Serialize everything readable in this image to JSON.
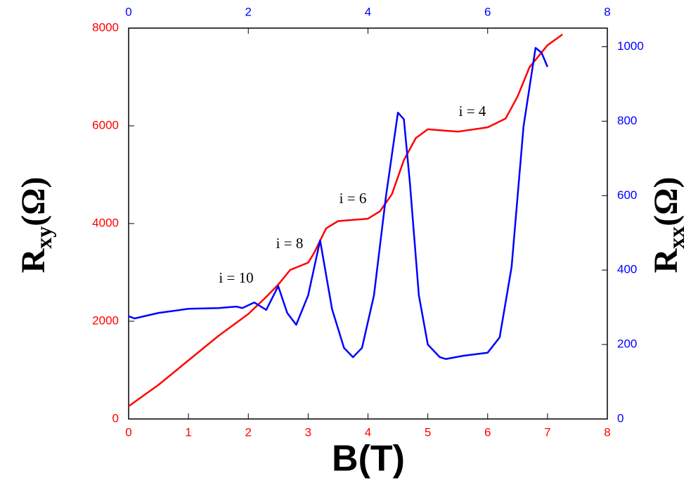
{
  "chart_data": {
    "type": "line",
    "x_label": "B(T)",
    "y_label": [
      "R",
      "xy",
      "(Ω)"
    ],
    "y2_label": [
      "R",
      "xx",
      "(Ω)"
    ],
    "annotations": [
      "i = 10",
      "i = 8",
      "i = 6",
      "i = 4"
    ],
    "xlim": [
      0,
      8
    ],
    "xticks": [
      0,
      1,
      2,
      3,
      4,
      5,
      6,
      7,
      8
    ],
    "x2lim": [
      0,
      8
    ],
    "x2ticks": [
      0,
      2,
      4,
      6,
      8
    ],
    "ylim": [
      0,
      8000
    ],
    "yticks": [
      0,
      2000,
      4000,
      6000,
      8000
    ],
    "y2lim": [
      0,
      1050
    ],
    "y2ticks": [
      0,
      200,
      400,
      600,
      800,
      1000
    ],
    "series": [
      {
        "color": "#ff0000",
        "axis": "y",
        "x": [
          0,
          0.5,
          1,
          1.5,
          2,
          2.3,
          2.5,
          2.7,
          3.0,
          3.1,
          3.3,
          3.5,
          4.0,
          4.2,
          4.4,
          4.6,
          4.8,
          5.0,
          5.5,
          6.0,
          6.3,
          6.5,
          6.7,
          7.0,
          7.25
        ],
        "values": [
          260,
          700,
          1200,
          1700,
          2150,
          2500,
          2750,
          3050,
          3200,
          3400,
          3900,
          4050,
          4100,
          4250,
          4600,
          5300,
          5750,
          5930,
          5880,
          5970,
          6150,
          6600,
          7200,
          7650,
          7870
        ]
      },
      {
        "color": "#0000ff",
        "axis": "y2",
        "x": [
          0,
          0.1,
          0.5,
          1.0,
          1.5,
          1.8,
          1.9,
          2.1,
          2.3,
          2.5,
          2.65,
          2.8,
          3.0,
          3.2,
          3.4,
          3.6,
          3.75,
          3.9,
          4.1,
          4.3,
          4.5,
          4.6,
          4.7,
          4.85,
          5.0,
          5.2,
          5.3,
          5.6,
          6.0,
          6.2,
          6.4,
          6.6,
          6.8,
          6.9,
          7.0
        ],
        "values": [
          276,
          270,
          285,
          296,
          298,
          302,
          298,
          313,
          293,
          357,
          285,
          253,
          332,
          480,
          295,
          191,
          166,
          191,
          332,
          597,
          823,
          805,
          635,
          332,
          200,
          166,
          161,
          170,
          178,
          219,
          408,
          786,
          997,
          984,
          946
        ]
      }
    ]
  }
}
